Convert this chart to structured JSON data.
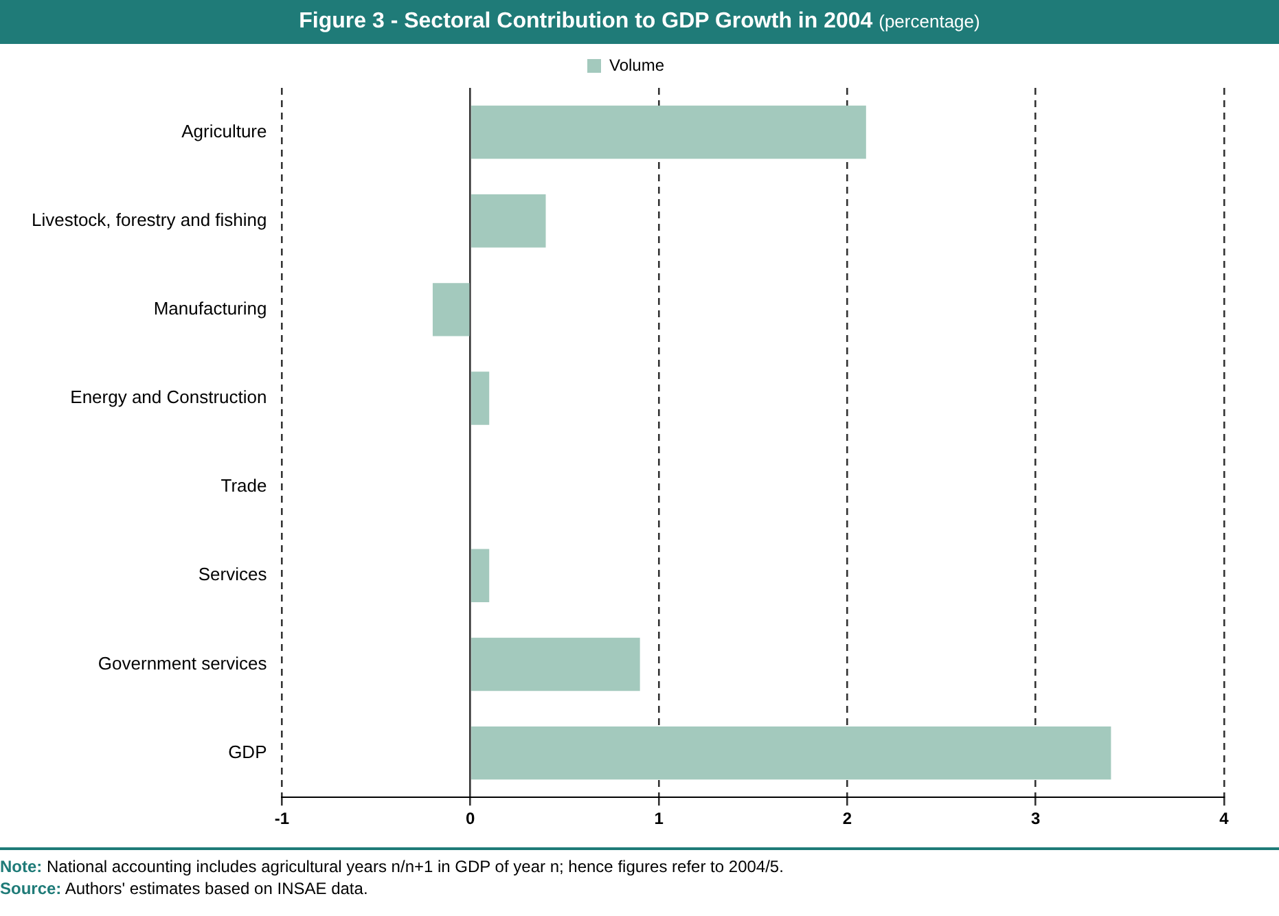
{
  "chart_data": {
    "type": "bar",
    "orientation": "horizontal",
    "title": "Figure 3 - Sectoral Contribution to GDP Growth in 2004",
    "subtitle": "(percentage)",
    "categories": [
      "Agriculture",
      "Livestock, forestry and fishing",
      "Manufacturing",
      "Energy and Construction",
      "Trade",
      "Services",
      "Government services",
      "GDP"
    ],
    "series": [
      {
        "name": "Volume",
        "color": "#a3c9bd",
        "values": [
          2.1,
          0.4,
          -0.2,
          0.1,
          0,
          0.1,
          0.9,
          3.4
        ]
      }
    ],
    "xlim": [
      -1,
      4
    ],
    "xticks": [
      -1,
      0,
      1,
      2,
      3,
      4
    ],
    "grid": "x",
    "legend": "top",
    "annotations": [
      "Note: National accounting includes agricultural years n/n+1 in GDP of year n; hence figures refer to 2004/5.",
      "Source: Authors' estimates based on INSAE data."
    ]
  }
}
